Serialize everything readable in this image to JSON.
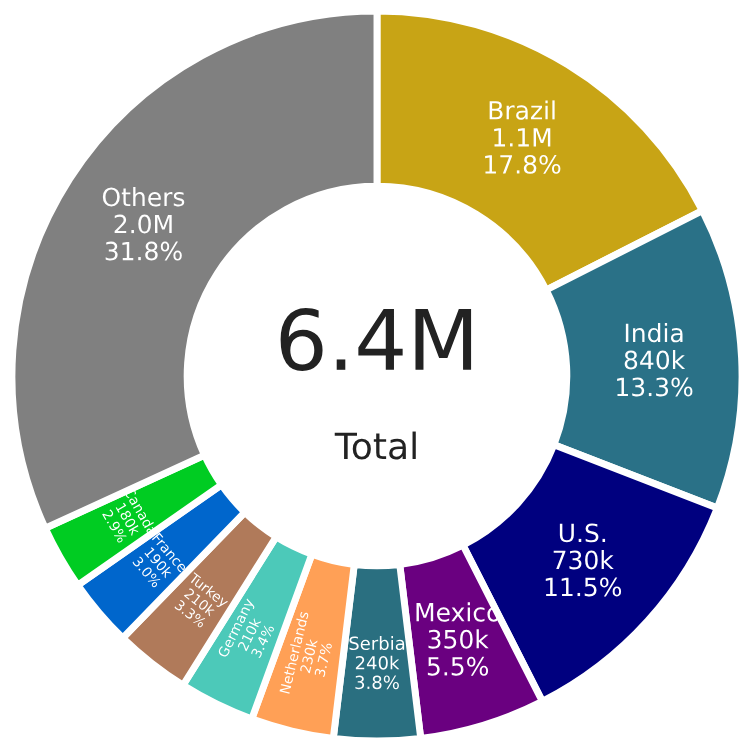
{
  "chart_data": {
    "type": "donut",
    "categories": [
      "Brazil",
      "India",
      "U.S.",
      "Mexico",
      "Serbia",
      "Netherlands",
      "Germany",
      "Turkey",
      "France",
      "Canada",
      "Others"
    ],
    "values": [
      1100000,
      840000,
      730000,
      350000,
      240000,
      230000,
      210000,
      210000,
      190000,
      180000,
      2000000
    ],
    "value_labels": [
      "1.1M\n17.8%",
      "840k\n13.3%",
      "730k\n11.5%",
      "350k\n5.5%",
      "240k\n3.8%",
      "230k\n3.7%",
      "210k\n3.4%",
      "210k\n3.3%",
      "190k\n3.0%",
      "180k\n2.9%",
      "2.0M\n31.8%"
    ],
    "colors": [
      "#c8a415",
      "#2a7187",
      "#00007f",
      "#6a0080",
      "#2a6f80",
      "#ffa056",
      "#4cc9b9",
      "#b07a5a",
      "#0066cc",
      "#00cc22",
      "#808080"
    ],
    "annotations": [
      "6.4M",
      "Total"
    ]
  }
}
